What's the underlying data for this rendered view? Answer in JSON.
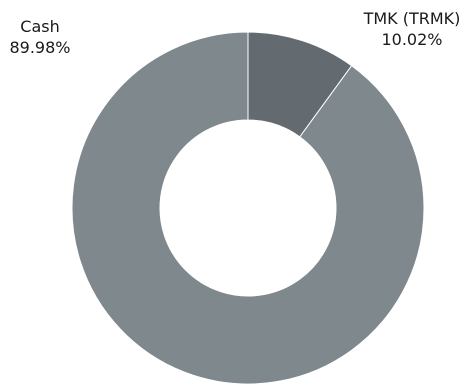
{
  "chart_data": {
    "type": "pie",
    "style": "donut",
    "title": "",
    "slices": [
      {
        "name": "TMK (TRMK)",
        "value": 10.02,
        "value_label": "10.02%",
        "color": "#636b70"
      },
      {
        "name": "Cash",
        "value": 89.98,
        "value_label": "89.98%",
        "color": "#7f888d"
      }
    ],
    "legend": "none",
    "labels": "outside"
  }
}
